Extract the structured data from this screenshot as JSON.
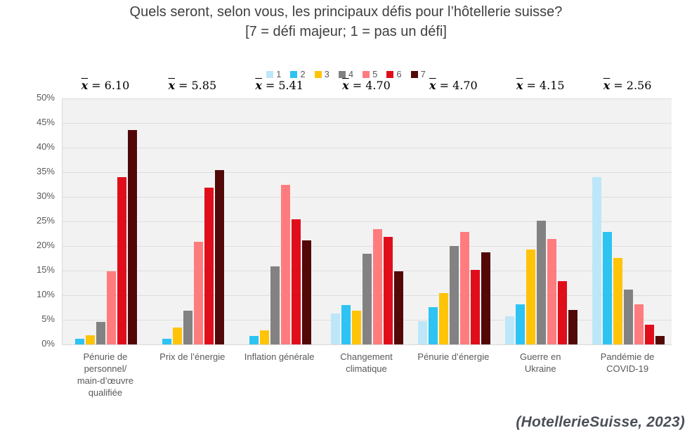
{
  "title": "Quels seront, selon vous, les principaux défis pour l’hôtellerie suisse?",
  "subtitle": "[7 = défi majeur; 1 = pas un défi]",
  "footer": {
    "source": "(HotellerieSuisse, 2023)"
  },
  "chart_data": {
    "type": "bar",
    "title": "Quels seront, selon vous, les principaux défis pour l’hôtellerie suisse?",
    "subtitle": "[7 = défi majeur; 1 = pas un défi]",
    "legend_position": "top",
    "grid": true,
    "ylabel": "",
    "xlabel": "",
    "ylim": [
      0,
      50
    ],
    "yticks": [
      0,
      5,
      10,
      15,
      20,
      25,
      30,
      35,
      40,
      45,
      50
    ],
    "ytick_suffix": "%",
    "categories": [
      "Pénurie de personnel/ main-d’œuvre qualifiée",
      "Prix de l’énergie",
      "Inflation générale",
      "Changement climatique",
      "Pénurie d’énergie",
      "Guerre en Ukraine",
      "Pandémie de COVID-19"
    ],
    "category_lines": [
      [
        "Pénurie de",
        "personnel/",
        "main-d’œuvre",
        "qualifiée"
      ],
      [
        "Prix de l’énergie"
      ],
      [
        "Inflation générale"
      ],
      [
        "Changement",
        "climatique"
      ],
      [
        "Pénurie d’énergie"
      ],
      [
        "Guerre en",
        "Ukraine"
      ],
      [
        "Pandémie de",
        "COVID-19"
      ]
    ],
    "mean_symbol": "x",
    "mean_eq": "=",
    "means": [
      6.1,
      5.85,
      5.41,
      4.7,
      4.7,
      4.15,
      2.56
    ],
    "mean_labels": [
      "6.10",
      "5.85",
      "5.41",
      "4.70",
      "4.70",
      "4.15",
      "2.56"
    ],
    "series": [
      {
        "name": "1",
        "color": "#bde7f8",
        "values": [
          0,
          0,
          0,
          6.3,
          4.7,
          5.7,
          34.0
        ]
      },
      {
        "name": "2",
        "color": "#2dc3f3",
        "values": [
          1.2,
          1.2,
          1.7,
          8.0,
          7.6,
          8.1,
          22.9
        ]
      },
      {
        "name": "3",
        "color": "#ffc408",
        "values": [
          1.8,
          3.4,
          2.9,
          6.8,
          10.5,
          19.3,
          17.6
        ]
      },
      {
        "name": "4",
        "color": "#828282",
        "values": [
          4.6,
          6.9,
          15.9,
          18.4,
          20.0,
          25.1,
          11.2
        ]
      },
      {
        "name": "5",
        "color": "#ff7c7e",
        "values": [
          14.8,
          20.9,
          32.5,
          23.5,
          22.9,
          21.5,
          8.2
        ]
      },
      {
        "name": "6",
        "color": "#e00e1b",
        "values": [
          34.0,
          31.9,
          25.4,
          21.8,
          15.2,
          12.8,
          4.0
        ]
      },
      {
        "name": "7",
        "color": "#530808",
        "values": [
          43.6,
          35.4,
          21.2,
          14.9,
          18.7,
          7.0,
          1.7
        ]
      }
    ]
  }
}
